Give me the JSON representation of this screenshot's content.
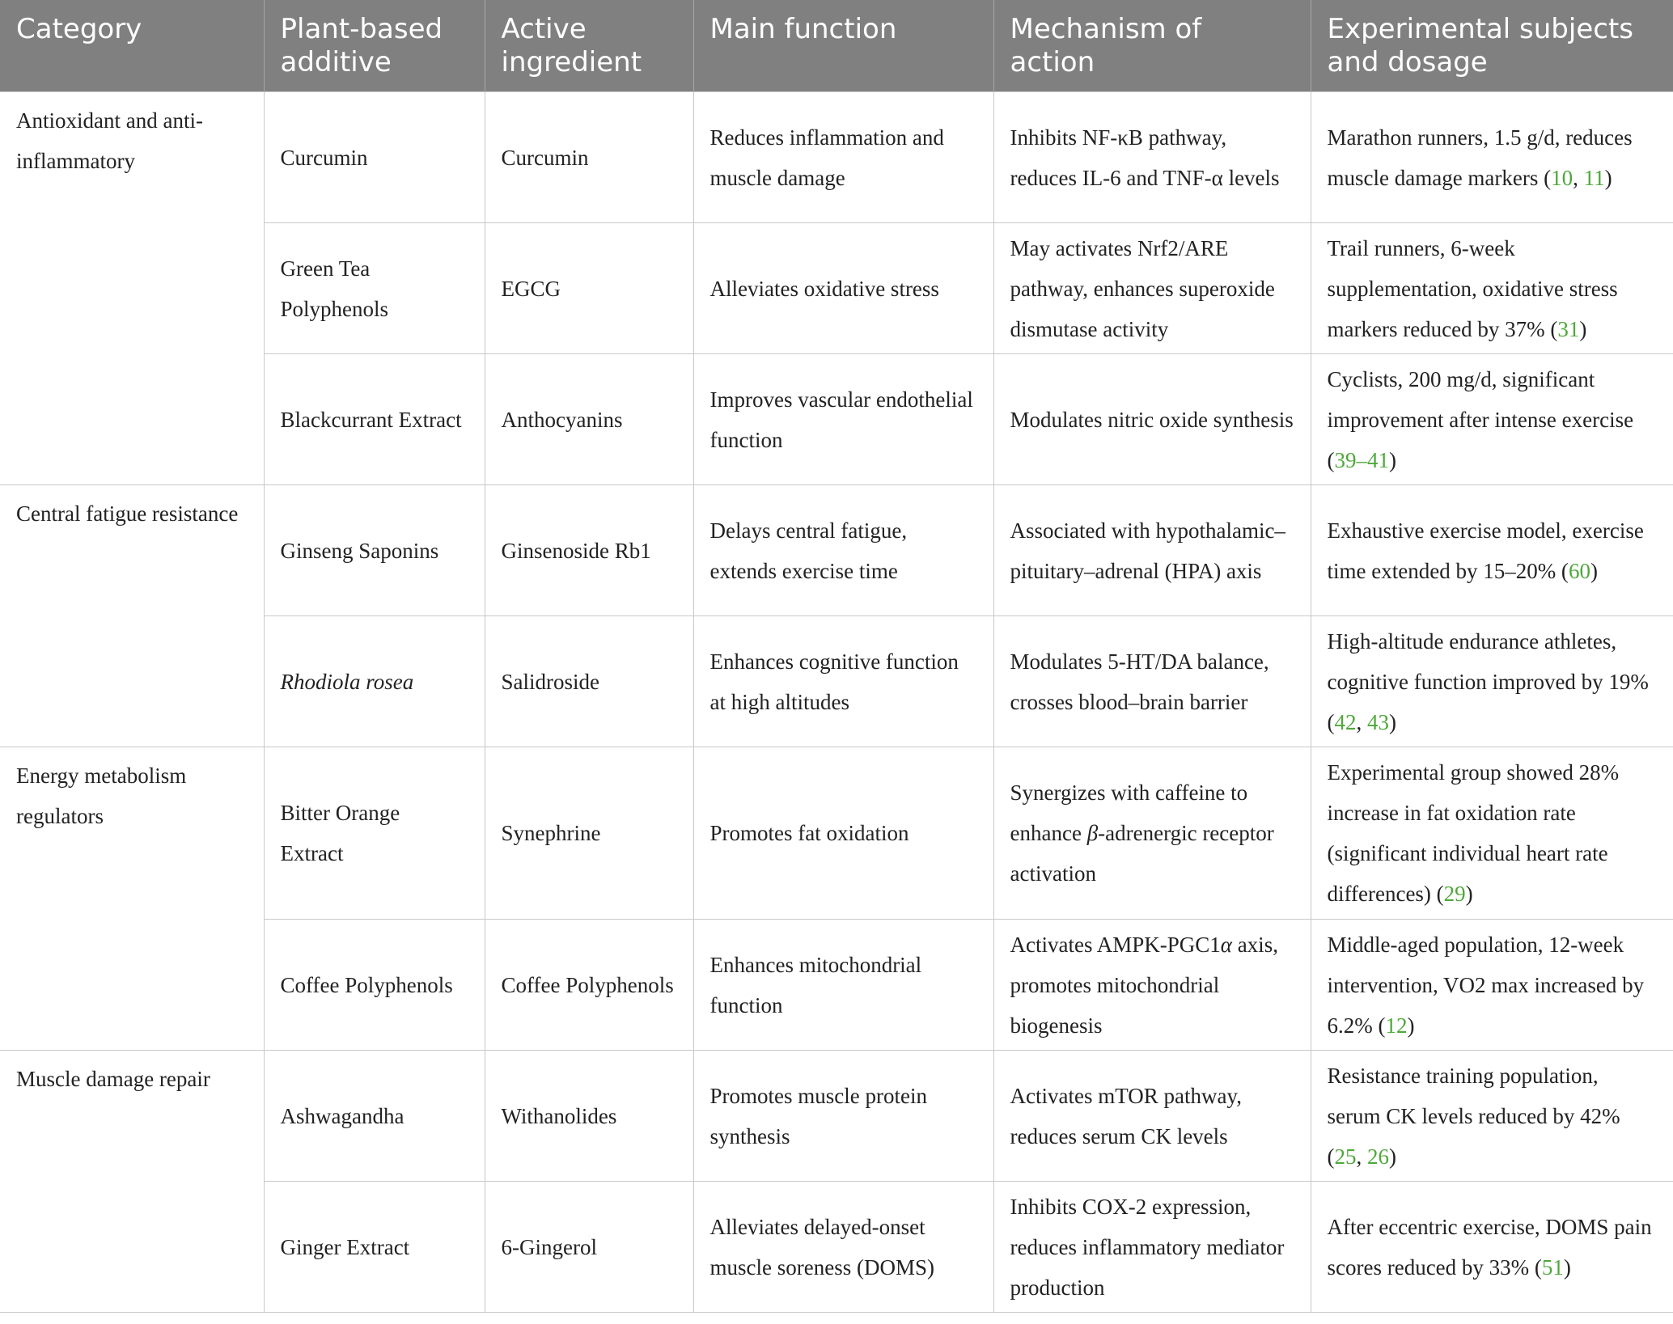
{
  "headers": [
    "Category",
    "Plant-based additive",
    "Active ingredient",
    "Main function",
    "Mechanism of action",
    "Experimental subjects and dosage"
  ],
  "rows": [
    {
      "category": "Antioxidant and anti-inflammatory",
      "span": 3,
      "additive": "Curcumin",
      "ingredient": "Curcumin",
      "function": "Reduces inflammation and muscle damage",
      "mechanism": [
        {
          "t": "Inhibits NF-κB pathway, reduces IL-6 and TNF-α levels"
        }
      ],
      "dosage": [
        {
          "t": "Marathon runners, 1.5 g/d, reduces muscle damage markers ("
        },
        {
          "ref": "10"
        },
        {
          "t": ", "
        },
        {
          "ref": "11"
        },
        {
          "t": ")"
        }
      ]
    },
    {
      "additive": "Green Tea Polyphenols",
      "ingredient": "EGCG",
      "function": "Alleviates oxidative stress",
      "mechanism": [
        {
          "t": "May activates Nrf2/ARE pathway, enhances superoxide dismutase activity"
        }
      ],
      "dosage": [
        {
          "t": "Trail runners, 6-week supplementation, oxidative stress markers reduced by 37% ("
        },
        {
          "ref": "31"
        },
        {
          "t": ")"
        }
      ]
    },
    {
      "additive": "Blackcurrant Extract",
      "ingredient": "Anthocyanins",
      "function": "Improves vascular endothelial function",
      "mechanism": [
        {
          "t": "Modulates nitric oxide synthesis"
        }
      ],
      "dosage": [
        {
          "t": "Cyclists, 200 mg/d, significant improvement after intense exercise ("
        },
        {
          "ref": "39–41"
        },
        {
          "t": ")"
        }
      ]
    },
    {
      "category": "Central fatigue resistance",
      "span": 2,
      "additive": "Ginseng Saponins",
      "ingredient": "Ginsenoside Rb1",
      "function": "Delays central fatigue, extends exercise time",
      "mechanism": [
        {
          "t": "Associated with hypothalamic–pituitary–adrenal (HPA) axis"
        }
      ],
      "dosage": [
        {
          "t": "Exhaustive exercise model, exercise time extended by 15–20% ("
        },
        {
          "ref": "60"
        },
        {
          "t": ")"
        }
      ]
    },
    {
      "additive": "Rhodiola rosea",
      "additive_italic": true,
      "ingredient": "Salidroside",
      "function": "Enhances cognitive function at high altitudes",
      "mechanism": [
        {
          "t": "Modulates 5-HT/DA balance, crosses blood–brain barrier"
        }
      ],
      "dosage": [
        {
          "t": "High-altitude endurance athletes, cognitive function improved by 19% ("
        },
        {
          "ref": "42"
        },
        {
          "t": ", "
        },
        {
          "ref": "43"
        },
        {
          "t": ")"
        }
      ]
    },
    {
      "category": "Energy metabolism regulators",
      "span": 2,
      "tall": true,
      "additive": "Bitter Orange Extract",
      "ingredient": "Synephrine",
      "function": "Promotes fat oxidation",
      "mechanism": [
        {
          "t": "Synergizes with caffeine to enhance "
        },
        {
          "it": "β"
        },
        {
          "t": "-adrenergic receptor activation"
        }
      ],
      "dosage": [
        {
          "t": "Experimental group showed 28% increase in fat oxidation rate (significant individual heart rate differences) ("
        },
        {
          "ref": "29"
        },
        {
          "t": ")"
        }
      ]
    },
    {
      "additive": "Coffee Polyphenols",
      "ingredient": "Coffee Polyphenols",
      "function": "Enhances mitochondrial function",
      "mechanism": [
        {
          "t": "Activates AMPK-PGC1"
        },
        {
          "it": "α"
        },
        {
          "t": " axis, promotes mitochondrial biogenesis"
        }
      ],
      "dosage": [
        {
          "t": "Middle-aged population, 12-week intervention, VO2 max increased by 6.2% ("
        },
        {
          "ref": "12"
        },
        {
          "t": ")"
        }
      ]
    },
    {
      "category": "Muscle damage repair",
      "span": 2,
      "additive": "Ashwagandha",
      "ingredient": "Withanolides",
      "function": "Promotes muscle protein synthesis",
      "mechanism": [
        {
          "t": "Activates mTOR pathway, reduces serum CK levels"
        }
      ],
      "dosage": [
        {
          "t": "Resistance training population, serum CK levels reduced by 42% ("
        },
        {
          "ref": "25"
        },
        {
          "t": ", "
        },
        {
          "ref": "26"
        },
        {
          "t": ")"
        }
      ]
    },
    {
      "additive": "Ginger Extract",
      "ingredient": "6-Gingerol",
      "function": "Alleviates delayed-onset muscle soreness (DOMS)",
      "mechanism": [
        {
          "t": "Inhibits COX-2 expression, reduces inflammatory mediator production"
        }
      ],
      "dosage": [
        {
          "t": "After eccentric exercise, DOMS pain scores reduced by 33% ("
        },
        {
          "ref": "51"
        },
        {
          "t": ")"
        }
      ]
    }
  ],
  "colors": {
    "header_bg": "#808080",
    "ref": "#4ea83a",
    "border": "#c8c8c8"
  }
}
